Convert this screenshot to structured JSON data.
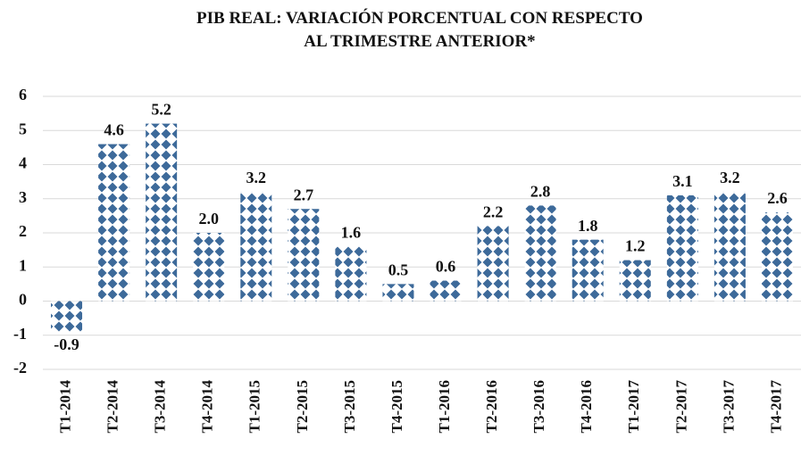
{
  "chart_data": {
    "type": "bar",
    "title": "PIB REAL: VARIACIÓN PORCENTUAL CON RESPECTO AL TRIMESTRE ANTERIOR*",
    "categories": [
      "T1-2014",
      "T2-2014",
      "T3-2014",
      "T4-2014",
      "T1-2015",
      "T2-2015",
      "T3-2015",
      "T4-2015",
      "T1-2016",
      "T2-2016",
      "T3-2016",
      "T4-2016",
      "T1-2017",
      "T2-2017",
      "T3-2017",
      "T4-2017"
    ],
    "values": [
      -0.9,
      4.6,
      5.2,
      2.0,
      3.2,
      2.7,
      1.6,
      0.5,
      0.6,
      2.2,
      2.8,
      1.8,
      1.2,
      3.1,
      3.2,
      2.6
    ],
    "value_labels": [
      "-0.9",
      "4.6",
      "5.2",
      "2.0",
      "3.2",
      "2.7",
      "1.6",
      "0.5",
      "0.6",
      "2.2",
      "2.8",
      "1.8",
      "1.2",
      "3.1",
      "3.2",
      "2.6"
    ],
    "color": "#3d6a9a",
    "ylim": [
      -2,
      6
    ],
    "yticks": [
      -2,
      -1,
      0,
      1,
      2,
      3,
      4,
      5,
      6
    ],
    "grid": true
  }
}
